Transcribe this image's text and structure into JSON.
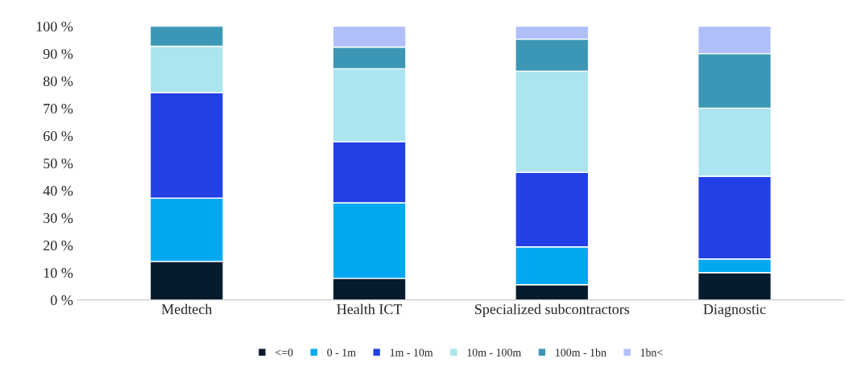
{
  "chart_data": {
    "type": "bar",
    "stacked": true,
    "categories": [
      "Medtech",
      "Health ICT",
      "Specialized subcontractors",
      "Diagnostic"
    ],
    "series": [
      {
        "name": "<=0",
        "color": "#061b2c",
        "values": [
          14.1,
          7.9,
          5.6,
          10
        ]
      },
      {
        "name": "0 - 1m",
        "color": "#00a8f0",
        "values": [
          23.1,
          27.6,
          13.8,
          5
        ]
      },
      {
        "name": "1m - 10m",
        "color": "#2240e6",
        "values": [
          38.5,
          22.3,
          27.2,
          30.2
        ]
      },
      {
        "name": "10m - 100m",
        "color": "#ace4ef",
        "values": [
          17,
          26.7,
          37,
          24.9
        ]
      },
      {
        "name": "100m - 1bn",
        "color": "#3c97b6",
        "values": [
          7.3,
          7.9,
          11.7,
          19.9
        ]
      },
      {
        "name": "1bn<",
        "color": "#b1bff8",
        "values": [
          null,
          7.6,
          4.7,
          10
        ]
      }
    ],
    "ylim": [
      0,
      100
    ],
    "yticks": [
      {
        "value": 0,
        "label": "0 %"
      },
      {
        "value": 10,
        "label": "10 %"
      },
      {
        "value": 20,
        "label": "20 %"
      },
      {
        "value": 30,
        "label": "30 %"
      },
      {
        "value": 40,
        "label": "40 %"
      },
      {
        "value": 50,
        "label": "50 %"
      },
      {
        "value": 60,
        "label": "60 %"
      },
      {
        "value": 70,
        "label": "70 %"
      },
      {
        "value": 80,
        "label": "80 %"
      },
      {
        "value": 90,
        "label": "90 %"
      },
      {
        "value": 100,
        "label": "100 %"
      }
    ],
    "grid": false,
    "legend": "bottom"
  }
}
